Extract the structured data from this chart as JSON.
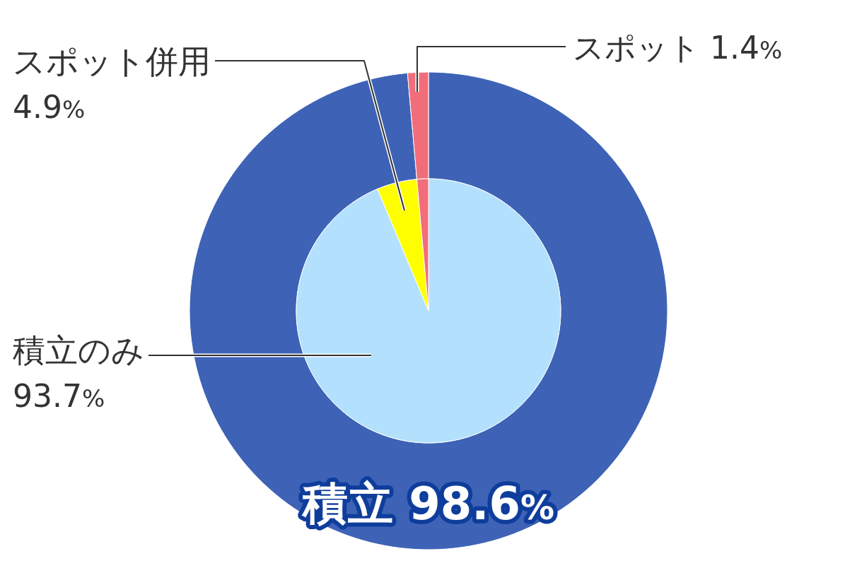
{
  "chart_data": [
    {
      "type": "donut",
      "categories": [
        "積立",
        "スポット"
      ],
      "values": [
        98.6,
        1.4
      ],
      "value_labels": [
        "98.6%",
        "1.4%"
      ],
      "colors": [
        "#3e63b6",
        "#f26d7a"
      ]
    },
    {
      "type": "pie",
      "categories": [
        "積立のみ",
        "スポット併用",
        null
      ],
      "values": [
        93.7,
        4.9,
        1.4
      ],
      "value_labels": [
        "93.7%",
        "4.9%",
        null
      ],
      "colors": [
        "#b3e0fc",
        "#ffff00",
        "#f26d7a"
      ]
    }
  ]
}
